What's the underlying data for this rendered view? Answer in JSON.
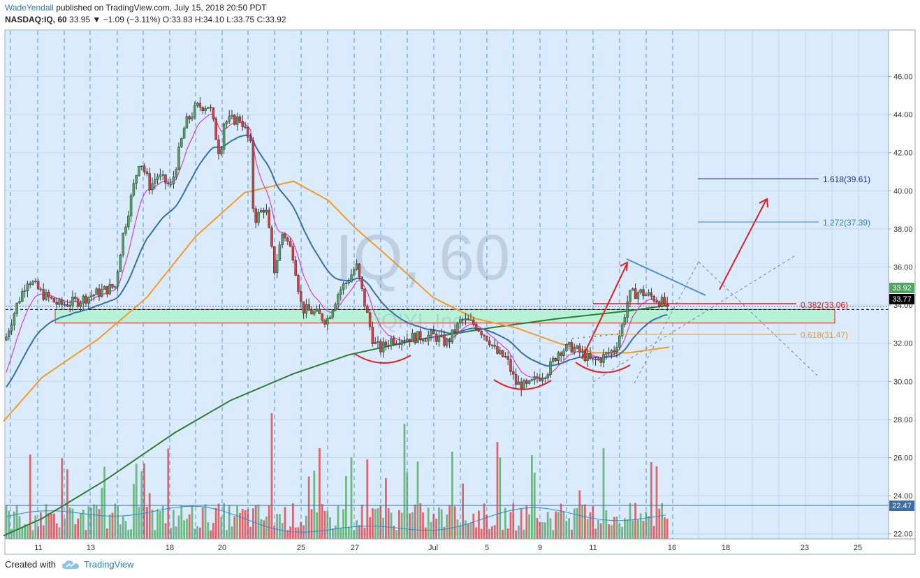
{
  "header": {
    "author": "WadeYendall",
    "published": "published on TradingView.com, July 15, 2018 20:50 PDT",
    "symbol": "NASDAQ:IQ, 60",
    "last": "33.95",
    "change": "▼ −1.09 (−3.11%)",
    "ohlc": "O:33.83 H:34.10 L:33.75 C:33.92"
  },
  "watermark": {
    "main": "IQ, 60",
    "sub": "iQIYI, Inc."
  },
  "footer": {
    "created_with": "Created with",
    "brand": "TradingView"
  },
  "colors": {
    "panel_bg": "#d9ebfc",
    "up": "#4ea65f",
    "down": "#e03a3e",
    "sma200": "#2e7d2e",
    "sma50": "#f59a23",
    "ema_fast": "#d63fc8",
    "ema_mid": "#3a6ea5",
    "zone": "#b7f2d8",
    "resistance": "#e02020",
    "fib_1618": "#1a2fa0",
    "fib_1272": "#3a7ec8",
    "fib_0382": "#e02020",
    "fib_0618": "#f59a23",
    "trend": "#4a90d9"
  },
  "chart_data": {
    "type": "candlestick",
    "symbol": "NASDAQ:IQ",
    "timeframe": "60",
    "y_axis": {
      "min": 20.5,
      "max": 47.2,
      "ticks": [
        22,
        24,
        26,
        28,
        30,
        32,
        34,
        36,
        38,
        40,
        42,
        44,
        46
      ]
    },
    "x_labels": [
      "11",
      "13",
      "18",
      "20",
      "25",
      "27",
      "Jul",
      "5",
      "9",
      "11",
      "16",
      "18",
      "23",
      "25"
    ],
    "price_labels": [
      {
        "text": "33.92",
        "value": 33.92,
        "bg": "#4ea65f"
      },
      {
        "text": "33.77",
        "value": 33.77,
        "bg": "#000000"
      },
      {
        "text": "22.47",
        "value": 22.47,
        "bg": "#3a6ea5"
      }
    ],
    "fib_labels": [
      {
        "text": "1.618(39.61)",
        "value": 39.61
      },
      {
        "text": "1.272(37.39)",
        "value": 37.39
      },
      {
        "text": "0.382(33.06)",
        "value": 33.06
      },
      {
        "text": "0.618(31.47)",
        "value": 31.47
      }
    ],
    "support_zone": {
      "low": 33.06,
      "high": 33.77
    },
    "price_keypoints": [
      [
        0,
        30.8
      ],
      [
        10,
        32.5
      ],
      [
        25,
        34.1
      ],
      [
        40,
        35.4
      ],
      [
        60,
        34.6
      ],
      [
        85,
        34.0
      ],
      [
        110,
        34.2
      ],
      [
        130,
        34.5
      ],
      [
        165,
        35.0
      ],
      [
        175,
        37.5
      ],
      [
        200,
        41.7
      ],
      [
        215,
        40.2
      ],
      [
        225,
        40.8
      ],
      [
        245,
        40.2
      ],
      [
        265,
        43.5
      ],
      [
        282,
        44.4
      ],
      [
        300,
        44.5
      ],
      [
        315,
        41.8
      ],
      [
        320,
        43.6
      ],
      [
        345,
        43.8
      ],
      [
        360,
        42.2
      ],
      [
        363,
        38.4
      ],
      [
        380,
        39.2
      ],
      [
        393,
        35.8
      ],
      [
        405,
        37.9
      ],
      [
        420,
        36.6
      ],
      [
        432,
        33.8
      ],
      [
        450,
        33.6
      ],
      [
        468,
        33.2
      ],
      [
        485,
        34.7
      ],
      [
        500,
        35.4
      ],
      [
        510,
        36.1
      ],
      [
        520,
        34.4
      ],
      [
        535,
        32.0
      ],
      [
        545,
        31.7
      ],
      [
        560,
        32.2
      ],
      [
        590,
        32.3
      ],
      [
        620,
        32.4
      ],
      [
        640,
        32.0
      ],
      [
        660,
        33.2
      ],
      [
        680,
        33.0
      ],
      [
        700,
        32.2
      ],
      [
        710,
        31.5
      ],
      [
        725,
        31.2
      ],
      [
        738,
        29.9
      ],
      [
        755,
        29.7
      ],
      [
        770,
        30.2
      ],
      [
        785,
        30.6
      ],
      [
        800,
        31.6
      ],
      [
        818,
        31.8
      ],
      [
        835,
        31.4
      ],
      [
        848,
        31.0
      ],
      [
        860,
        31.2
      ],
      [
        880,
        31.7
      ],
      [
        890,
        32.8
      ],
      [
        900,
        34.5
      ],
      [
        915,
        34.7
      ],
      [
        935,
        34.4
      ],
      [
        958,
        33.92
      ]
    ],
    "moving_averages": {
      "sma200": [
        [
          5,
          21.9
        ],
        [
          60,
          22.8
        ],
        [
          150,
          24.8
        ],
        [
          250,
          27.3
        ],
        [
          330,
          29.0
        ],
        [
          420,
          30.4
        ],
        [
          500,
          31.4
        ],
        [
          600,
          32.2
        ],
        [
          700,
          32.8
        ],
        [
          800,
          33.3
        ],
        [
          900,
          33.7
        ],
        [
          958,
          34.0
        ]
      ],
      "sma50": [
        [
          5,
          27.9
        ],
        [
          60,
          30.2
        ],
        [
          140,
          32.2
        ],
        [
          210,
          34.4
        ],
        [
          280,
          37.6
        ],
        [
          350,
          39.9
        ],
        [
          420,
          40.5
        ],
        [
          470,
          39.5
        ],
        [
          510,
          38.0
        ],
        [
          560,
          36.4
        ],
        [
          620,
          34.4
        ],
        [
          680,
          33.3
        ],
        [
          740,
          32.8
        ],
        [
          800,
          32.0
        ],
        [
          850,
          31.5
        ],
        [
          900,
          31.5
        ],
        [
          958,
          31.8
        ]
      ]
    }
  }
}
